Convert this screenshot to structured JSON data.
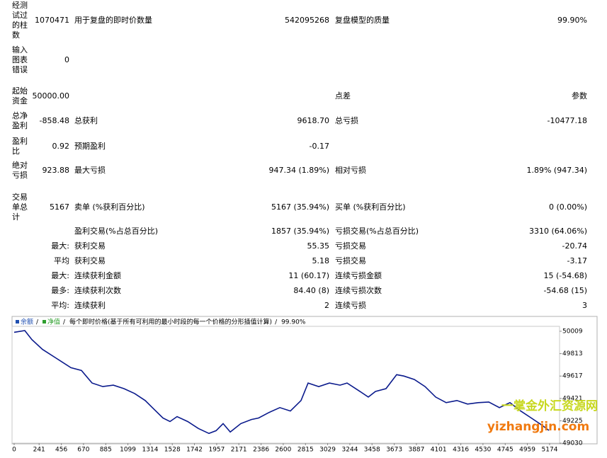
{
  "table": {
    "rows": [
      {
        "label": "经测试过的柱数",
        "value": "1070471",
        "name1": "用于复盘的即时价数量",
        "value1": "542095268",
        "name2": "复盘模型的质量",
        "value2": "99.90%"
      },
      {
        "label": "输入图表错误",
        "value": "0"
      },
      {
        "label": "起始资金",
        "value": "50000.00",
        "name2": "点差",
        "value2": "参数"
      },
      {
        "label": "总净盈利",
        "value": "-858.48",
        "name1": "总获利",
        "value1": "9618.70",
        "name2": "总亏损",
        "value2": "-10477.18"
      },
      {
        "label": "盈利比",
        "value": "0.92",
        "name1": "预期盈利",
        "value1": "-0.17"
      },
      {
        "label": "绝对亏损",
        "value": "923.88",
        "name1": "最大亏损",
        "value1": "947.34 (1.89%)",
        "name2": "相对亏损",
        "value2": "1.89% (947.34)"
      },
      {
        "label": "交易单总计",
        "value": "5167",
        "name1": "卖单 (%获利百分比)",
        "value1": "5167 (35.94%)",
        "name2": "买单 (%获利百分比)",
        "value2": "0 (0.00%)"
      },
      {
        "name1": "盈利交易(%占总百分比)",
        "value1": "1857 (35.94%)",
        "name2": "亏损交易(%占总百分比)",
        "value2": "3310 (64.06%)"
      },
      {
        "value": "最大:",
        "name1": "获利交易",
        "value1": "55.35",
        "name2": "亏损交易",
        "value2": "-20.74"
      },
      {
        "value": "平均",
        "name1": "获利交易",
        "value1": "5.18",
        "name2": "亏损交易",
        "value2": "-3.17"
      },
      {
        "value": "最大:",
        "name1": "连续获利金额",
        "value1": "11 (60.17)",
        "name2": "连续亏损金额",
        "value2": "15 (-54.68)"
      },
      {
        "value": "最多:",
        "name1": "连续获利次数",
        "value1": "84.40 (8)",
        "name2": "连续亏损次数",
        "value2": "-54.68 (15)"
      },
      {
        "value": "平均:",
        "name1": "连续获利",
        "value1": "2",
        "name2": "连续亏损",
        "value2": "3"
      }
    ]
  },
  "chart_data": {
    "type": "line",
    "legend": [
      {
        "name": "余额",
        "color": "#1f4fb0"
      },
      {
        "name": "净值",
        "color": "#2e9e2e"
      }
    ],
    "subtitle": "每个即时价格(基于所有可利用的最小时段的每一个价格的分形插值计算)",
    "annotation": "99.90%",
    "color": "#0a1a8c",
    "x": [
      0,
      103,
      171,
      274,
      411,
      548,
      650,
      753,
      856,
      958,
      1061,
      1164,
      1266,
      1335,
      1437,
      1506,
      1574,
      1677,
      1780,
      1882,
      1951,
      2019,
      2088,
      2190,
      2293,
      2362,
      2464,
      2567,
      2669,
      2772,
      2840,
      2943,
      3046,
      3149,
      3217,
      3320,
      3422,
      3491,
      3593,
      3696,
      3765,
      3867,
      3970,
      4073,
      4175,
      4278,
      4381,
      4483,
      4586,
      4689,
      4791,
      4894,
      4997,
      5099,
      5167
    ],
    "values": [
      50000,
      50015,
      49936,
      49850,
      49770,
      49690,
      49666,
      49556,
      49525,
      49537,
      49507,
      49464,
      49403,
      49341,
      49250,
      49219,
      49262,
      49219,
      49158,
      49115,
      49139,
      49201,
      49127,
      49201,
      49237,
      49250,
      49299,
      49341,
      49311,
      49403,
      49556,
      49525,
      49556,
      49537,
      49556,
      49495,
      49433,
      49482,
      49507,
      49629,
      49617,
      49587,
      49525,
      49433,
      49384,
      49403,
      49372,
      49384,
      49390,
      49341,
      49384,
      49311,
      49250,
      49188,
      49141.52
    ],
    "xlim": [
      0,
      5270
    ],
    "xticks": [
      0,
      241,
      456,
      670,
      885,
      1099,
      1314,
      1528,
      1742,
      1957,
      2171,
      2386,
      2600,
      2815,
      3029,
      3244,
      3458,
      3673,
      3887,
      4101,
      4316,
      4530,
      4745,
      4959,
      5174
    ],
    "ylim": [
      49030,
      50052
    ],
    "yticks": [
      49030,
      49225,
      49421,
      49617,
      49813,
      50009
    ],
    "grid": false
  },
  "watermark": {
    "line1": "一掌金外汇资源网",
    "line2": "yizhangjin.com"
  }
}
